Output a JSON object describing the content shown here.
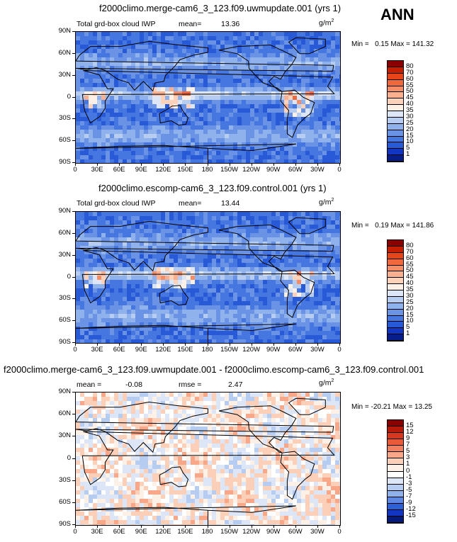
{
  "chart_data": [
    {
      "type": "heatmap",
      "title": "f2000climo.merge-cam6_3_123.f09.uwmupdate.001 (yrs 1)",
      "left_label": "Total grd-box cloud IWP",
      "mean_label": "mean=",
      "mean": "13.36",
      "units": "g/m",
      "units_sup": "2",
      "min_max": {
        "min_label": "Min =",
        "min": "0.15",
        "max_label": "Max =",
        "max": "141.32"
      },
      "y_ticks": [
        "90N",
        "60N",
        "30N",
        "0",
        "30S",
        "60S",
        "90S"
      ],
      "x_ticks": [
        "0",
        "30E",
        "60E",
        "90E",
        "120E",
        "150E",
        "180",
        "150W",
        "120W",
        "90W",
        "60W",
        "30W",
        "0"
      ],
      "colorbar": {
        "labels": [
          "80",
          "70",
          "60",
          "55",
          "50",
          "45",
          "40",
          "35",
          "30",
          "25",
          "20",
          "15",
          "10",
          "5",
          "1"
        ],
        "colors": [
          "#8b0000",
          "#c81e00",
          "#e8441a",
          "#f0693e",
          "#f58d68",
          "#f9b090",
          "#fcd2ba",
          "#fdf0e6",
          "#dce6f7",
          "#b6cdf1",
          "#8fb1ec",
          "#6a93e6",
          "#4676e0",
          "#2859d6",
          "#1236c2",
          "#071d8c"
        ]
      }
    },
    {
      "type": "heatmap",
      "title": "f2000climo.escomp-cam6_3_123.f09.control.001 (yrs 1)",
      "left_label": "Total grd-box cloud IWP",
      "mean_label": "mean=",
      "mean": "13.44",
      "units": "g/m",
      "units_sup": "2",
      "min_max": {
        "min_label": "Min =",
        "min": "0.19",
        "max_label": "Max =",
        "max": "141.86"
      },
      "y_ticks": [
        "90N",
        "60N",
        "30N",
        "0",
        "30S",
        "60S",
        "90S"
      ],
      "x_ticks": [
        "0",
        "30E",
        "60E",
        "90E",
        "120E",
        "150E",
        "180",
        "150W",
        "120W",
        "90W",
        "60W",
        "30W",
        "0"
      ],
      "colorbar": {
        "labels": [
          "80",
          "70",
          "60",
          "55",
          "50",
          "45",
          "40",
          "35",
          "30",
          "25",
          "20",
          "15",
          "10",
          "5",
          "1"
        ],
        "colors": [
          "#8b0000",
          "#c81e00",
          "#e8441a",
          "#f0693e",
          "#f58d68",
          "#f9b090",
          "#fcd2ba",
          "#fdf0e6",
          "#dce6f7",
          "#b6cdf1",
          "#8fb1ec",
          "#6a93e6",
          "#4676e0",
          "#2859d6",
          "#1236c2",
          "#071d8c"
        ]
      }
    },
    {
      "type": "heatmap",
      "title": "f2000climo.merge-cam6_3_123.f09.uwmupdate.001 - f2000climo.escomp-cam6_3_123.f09.control.001",
      "mean_label": "mean =",
      "mean": "-0.08",
      "rmse_label": "rmse =",
      "rmse": "2.47",
      "units": "g/m",
      "units_sup": "2",
      "min_max": {
        "min_label": "Min =",
        "min": "-20.21",
        "max_label": "Max =",
        "max": "13.25"
      },
      "y_ticks": [
        "90N",
        "60N",
        "30N",
        "0",
        "30S",
        "60S",
        "90S"
      ],
      "x_ticks": [
        "0",
        "30E",
        "60E",
        "90E",
        "120E",
        "150E",
        "180",
        "150W",
        "120W",
        "90W",
        "60W",
        "30W",
        "0"
      ],
      "colorbar": {
        "labels": [
          "15",
          "12",
          "9",
          "7",
          "5",
          "3",
          "1",
          "0",
          "-1",
          "-3",
          "-5",
          "-7",
          "-9",
          "-12",
          "-15"
        ],
        "colors": [
          "#8b0000",
          "#b81a0a",
          "#d8361e",
          "#e85a3a",
          "#f28060",
          "#f8a888",
          "#fccfb8",
          "#fdf0e6",
          "#ffffff",
          "#dce6f7",
          "#b6cdf1",
          "#8fb1ec",
          "#5f88e3",
          "#2d5fd6",
          "#1236c2",
          "#061a7e"
        ]
      }
    }
  ],
  "season": "ANN"
}
